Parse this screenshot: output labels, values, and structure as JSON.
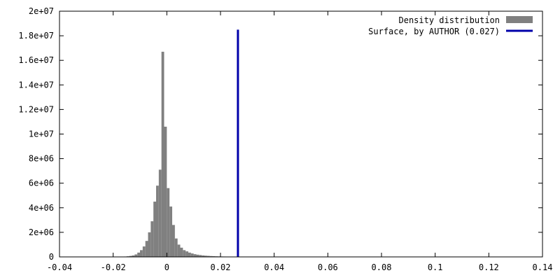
{
  "chart_data": {
    "type": "bar",
    "xlim": [
      -0.04,
      0.14
    ],
    "ylim": [
      0,
      20000000
    ],
    "grid": false,
    "legend_position": "top-right",
    "x_ticks": [
      -0.04,
      -0.02,
      0,
      0.02,
      0.04,
      0.06,
      0.08,
      0.1,
      0.12,
      0.14
    ],
    "x_tick_labels": [
      "-0.04",
      "-0.02",
      "0",
      "0.02",
      "0.04",
      "0.06",
      "0.08",
      "0.1",
      "0.12",
      "0.14"
    ],
    "y_ticks": [
      0,
      2000000,
      4000000,
      6000000,
      8000000,
      10000000,
      12000000,
      14000000,
      16000000,
      18000000,
      20000000
    ],
    "y_tick_labels": [
      "0",
      "2e+06",
      "4e+06",
      "6e+06",
      "8e+06",
      "1e+07",
      "1.2e+07",
      "1.4e+07",
      "1.6e+07",
      "1.8e+07",
      "2e+07"
    ],
    "series": [
      {
        "name": "Density distribution",
        "type": "histogram",
        "color": "#808080",
        "bin_width": 0.001,
        "bin_starts": [
          -0.016,
          -0.015,
          -0.014,
          -0.013,
          -0.012,
          -0.011,
          -0.01,
          -0.009,
          -0.008,
          -0.007,
          -0.006,
          -0.005,
          -0.004,
          -0.003,
          -0.002,
          -0.001,
          0.0,
          0.001,
          0.002,
          0.003,
          0.004,
          0.005,
          0.006,
          0.007,
          0.008,
          0.009,
          0.01,
          0.011,
          0.012,
          0.013,
          0.014,
          0.015,
          0.016,
          0.017,
          0.018,
          0.019,
          0.02,
          0.021,
          0.022,
          0.023,
          0.024,
          0.025,
          0.026,
          0.027,
          0.028,
          0.029
        ],
        "values": [
          30000,
          50000,
          80000,
          120000,
          200000,
          350000,
          550000,
          850000,
          1300000,
          2000000,
          2900000,
          4500000,
          5800000,
          7100000,
          16700000,
          10600000,
          5600000,
          4100000,
          2600000,
          1500000,
          1000000,
          750000,
          550000,
          450000,
          350000,
          280000,
          220000,
          180000,
          150000,
          120000,
          100000,
          85000,
          70000,
          60000,
          50000,
          42000,
          35000,
          30000,
          25000,
          20000,
          17000,
          14000,
          12000,
          10000,
          8000,
          6000
        ]
      },
      {
        "name": "Surface, by AUTHOR (0.027)",
        "type": "vline",
        "color": "#0000aa",
        "x": 0.0265
      }
    ]
  }
}
